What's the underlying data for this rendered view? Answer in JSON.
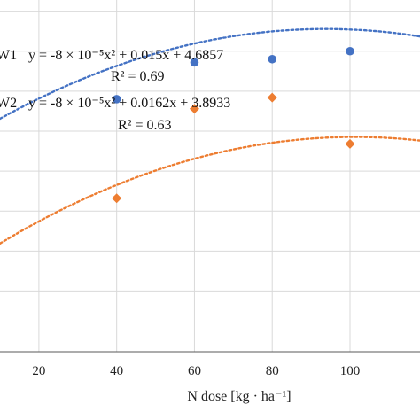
{
  "chart_data": {
    "type": "scatter",
    "xlabel": "N dose [kg · ha⁻¹]",
    "ylabel": "",
    "xlim": [
      10,
      118
    ],
    "ylim": [
      3.37,
      5.57
    ],
    "xticks": [
      20,
      40,
      60,
      80,
      100
    ],
    "grid": true,
    "colors": {
      "series1": "#4472C4",
      "series2": "#ED7D31"
    },
    "series": [
      {
        "name": "W1",
        "marker": "circle",
        "x": [
          40,
          60,
          80,
          100
        ],
        "y": [
          4.95,
          5.18,
          5.2,
          5.25
        ],
        "trendline": {
          "equation": "y = -8 × 10⁻⁵x² + 0.015x + 4.6857",
          "r2": "R² = 0.69",
          "a": -8e-05,
          "b": 0.015,
          "c": 4.6857
        }
      },
      {
        "name": "W2",
        "marker": "diamond",
        "x": [
          40,
          60,
          80,
          100
        ],
        "y": [
          4.33,
          4.89,
          4.96,
          4.67
        ],
        "trendline": {
          "equation": "y = -8 × 10⁻⁵x² + 0.0162x + 3.8933",
          "r2": "R² = 0.63",
          "a": -8e-05,
          "b": 0.0162,
          "c": 3.8933
        }
      }
    ]
  }
}
